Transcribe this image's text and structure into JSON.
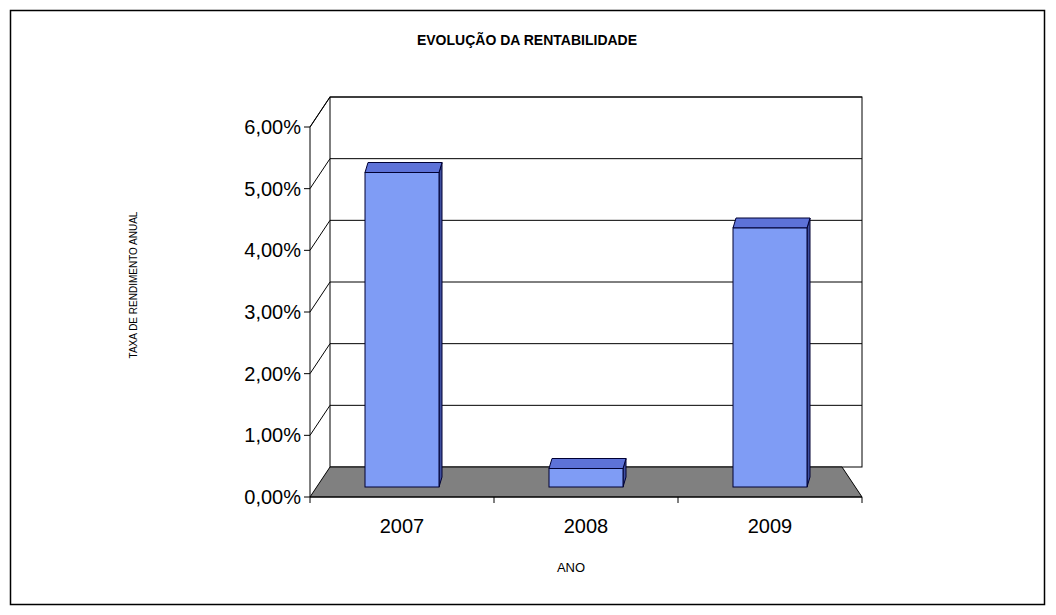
{
  "chart_data": {
    "type": "bar",
    "title": "EVOLUÇÃO DA RENTABILIDADE",
    "x_label": "ANO",
    "y_label": "TAXA DE RENDIMENTO ANUAL",
    "categories": [
      "2007",
      "2008",
      "2009"
    ],
    "values": [
      5.1,
      0.3,
      4.2
    ],
    "color": "#7f9cf5",
    "ylim": [
      0,
      6
    ],
    "yticks": [
      {
        "value": 0,
        "label": "0,00%"
      },
      {
        "value": 1,
        "label": "1,00%"
      },
      {
        "value": 2,
        "label": "2,00%"
      },
      {
        "value": 3,
        "label": "3,00%"
      },
      {
        "value": 4,
        "label": "4,00%"
      },
      {
        "value": 5,
        "label": "5,00%"
      },
      {
        "value": 6,
        "label": "6,00%"
      }
    ],
    "grid": true
  }
}
